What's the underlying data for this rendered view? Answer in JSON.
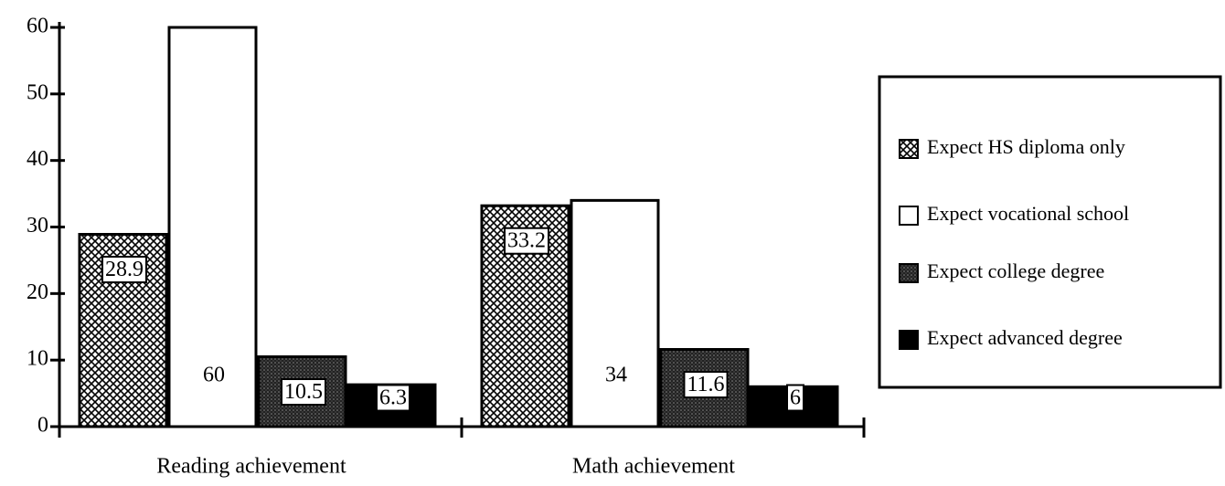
{
  "chart_data": {
    "type": "bar",
    "categories": [
      "Reading achievement",
      "Math achievement"
    ],
    "series": [
      {
        "name": "Expect HS diploma only",
        "color": "#000000",
        "pattern": "crosshatch",
        "values": [
          28.9,
          33.2
        ]
      },
      {
        "name": "Expect vocational school",
        "color": "#ffffff",
        "pattern": "solid",
        "values": [
          60,
          34
        ]
      },
      {
        "name": "Expect college degree",
        "color": "#333333",
        "pattern": "stipple",
        "values": [
          10.5,
          11.6
        ]
      },
      {
        "name": "Expect advanced degree",
        "color": "#000000",
        "pattern": "solid",
        "values": [
          6.3,
          6
        ]
      }
    ],
    "ylim": [
      0,
      60
    ],
    "yticks": [
      0,
      10,
      20,
      30,
      40,
      50,
      60
    ],
    "grid": false,
    "legend": "right"
  }
}
